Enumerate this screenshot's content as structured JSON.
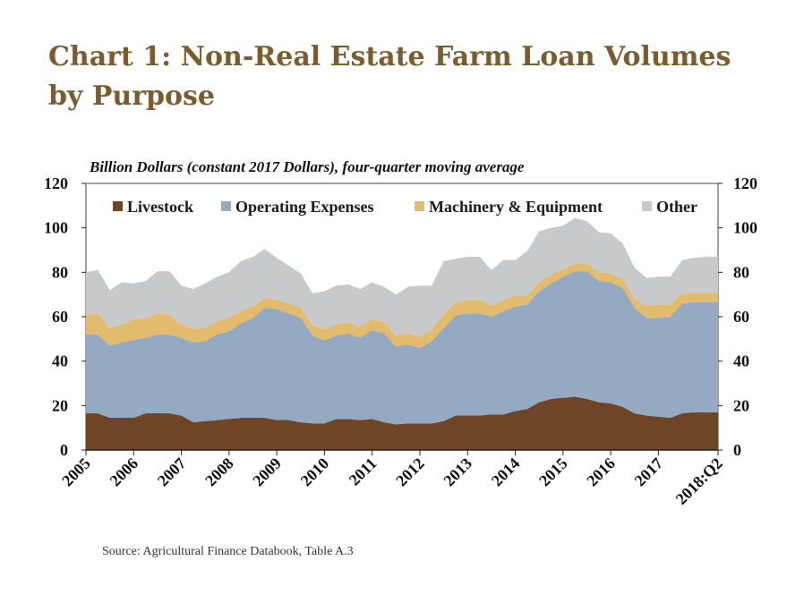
{
  "title": "Chart 1: Non-Real Estate Farm Loan Volumes by Purpose",
  "source": "Source: Agricultural Finance Databook, Table A.3",
  "colors": {
    "livestock": "#6e4526",
    "operating": "#94aac2",
    "machinery": "#e3bb6c",
    "other": "#c8c9cb"
  },
  "chart_data": {
    "type": "area",
    "stacked": true,
    "subtitle": "Billion Dollars (constant 2017 Dollars), four-quarter moving average",
    "ylim": [
      0,
      120
    ],
    "yticks": [
      0,
      20,
      40,
      60,
      80,
      100,
      120
    ],
    "xlim": [
      2005,
      2018.25
    ],
    "xtick_labels": [
      "2005",
      "2006",
      "2007",
      "2008",
      "2009",
      "2010",
      "2011",
      "2012",
      "2013",
      "2014",
      "2015",
      "2016",
      "2017",
      "2018:Q2"
    ],
    "xtick_values": [
      2005,
      2006,
      2007,
      2008,
      2009,
      2010,
      2011,
      2012,
      2013,
      2014,
      2015,
      2016,
      2017,
      2018.25
    ],
    "legend_position": "top",
    "x": [
      2005.0,
      2005.25,
      2005.5,
      2005.75,
      2006.0,
      2006.25,
      2006.5,
      2006.75,
      2007.0,
      2007.25,
      2007.5,
      2007.75,
      2008.0,
      2008.25,
      2008.5,
      2008.75,
      2009.0,
      2009.25,
      2009.5,
      2009.75,
      2010.0,
      2010.25,
      2010.5,
      2010.75,
      2011.0,
      2011.25,
      2011.5,
      2011.75,
      2012.0,
      2012.25,
      2012.5,
      2012.75,
      2013.0,
      2013.25,
      2013.5,
      2013.75,
      2014.0,
      2014.25,
      2014.5,
      2014.75,
      2015.0,
      2015.25,
      2015.5,
      2015.75,
      2016.0,
      2016.25,
      2016.5,
      2016.75,
      2017.0,
      2017.25,
      2017.5,
      2017.75,
      2018.0,
      2018.25
    ],
    "series": [
      {
        "name": "Livestock",
        "values": [
          16.5,
          16.5,
          14.5,
          14.5,
          14.5,
          16.5,
          16.5,
          16.5,
          15.5,
          12.5,
          13,
          13.5,
          14,
          14.5,
          14.5,
          14.5,
          13.5,
          13.5,
          12.5,
          12,
          12,
          14,
          14,
          13.5,
          14,
          12.5,
          11.5,
          12,
          12,
          12,
          13,
          15.5,
          15.5,
          15.5,
          16,
          16,
          17.5,
          18.5,
          21.5,
          23,
          23.5,
          24,
          23,
          21.5,
          21,
          19.5,
          16.5,
          15.5,
          15,
          14.5,
          16.5,
          17,
          17,
          17
        ]
      },
      {
        "name": "Operating Expenses",
        "values": [
          35.5,
          35.5,
          32.5,
          34,
          35,
          34,
          35.5,
          35.5,
          35,
          36,
          36,
          38.5,
          39.5,
          42.5,
          45,
          49.5,
          50,
          48,
          47,
          39.5,
          37.5,
          37.5,
          38.5,
          37,
          40,
          40,
          35,
          35.5,
          34,
          37,
          42,
          45,
          46,
          46,
          44,
          46.5,
          47,
          47,
          50,
          52,
          54.5,
          56.5,
          57.5,
          54.5,
          54.5,
          53.5,
          47.5,
          44,
          44.5,
          45.5,
          49.5,
          49.5,
          49.5,
          49.5
        ]
      },
      {
        "name": "Machinery & Equipment",
        "values": [
          9,
          9.5,
          8,
          8,
          9.5,
          9,
          9.5,
          9,
          6,
          6,
          6,
          6,
          6,
          5.5,
          5,
          4.5,
          4,
          4.5,
          4.5,
          4.5,
          5,
          5,
          5,
          5,
          5,
          5,
          5,
          5,
          5,
          5.5,
          6,
          6,
          6,
          6,
          5,
          5,
          5,
          4,
          4,
          4,
          3.5,
          3.5,
          3.5,
          4,
          4,
          4,
          4,
          5.5,
          6,
          5.5,
          4.5,
          4,
          4,
          4
        ]
      },
      {
        "name": "Other",
        "values": [
          19,
          19.5,
          17,
          19,
          16,
          16.5,
          19,
          19.5,
          17.5,
          18,
          20,
          20,
          20.5,
          22.5,
          22.5,
          22,
          19,
          17,
          15.5,
          14.5,
          17,
          17.5,
          17,
          17,
          16.5,
          16,
          18.5,
          21,
          23,
          19.5,
          24,
          19.5,
          19.5,
          19.5,
          16,
          18,
          16,
          20,
          23,
          21,
          19.5,
          20.5,
          19,
          18,
          18,
          16,
          14,
          12.5,
          12.5,
          12.5,
          15,
          16,
          16.5,
          16.5
        ]
      }
    ]
  }
}
